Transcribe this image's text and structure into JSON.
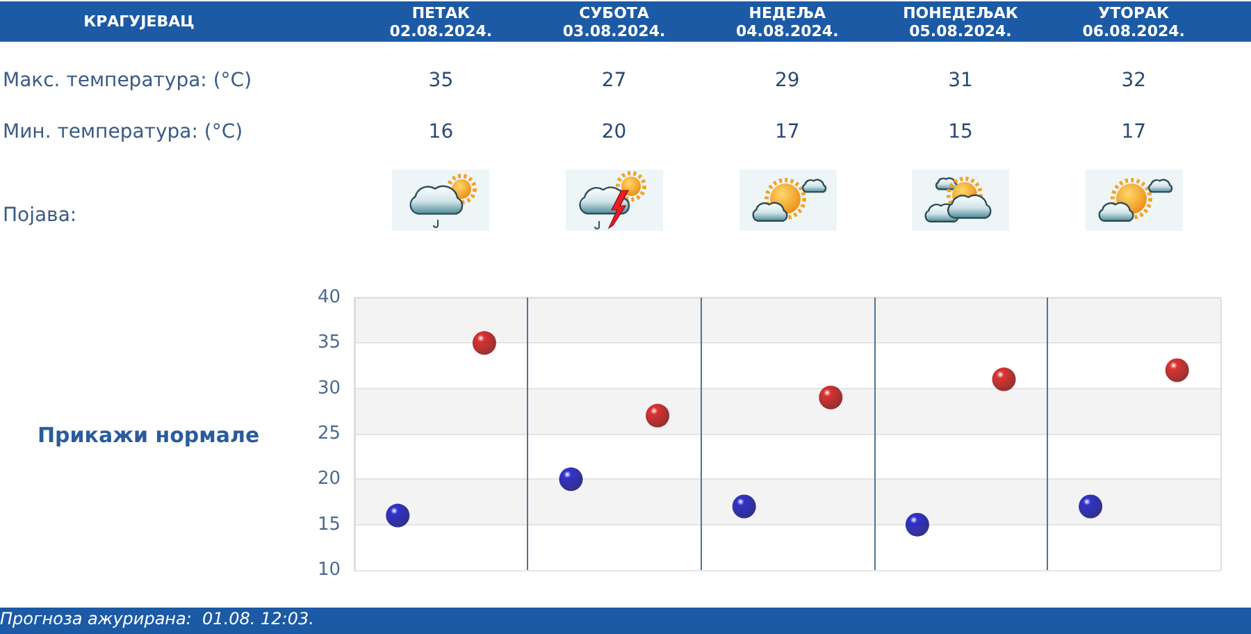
{
  "chart_data": [
    {
      "type": "other",
      "title": "КРАГУЈЕВАЦ",
      "categories": [
        "ПЕТАК\n02.08.2024.",
        "СУБОТА\n03.08.2024.",
        "НЕДЕЉА\n04.08.2024.",
        "ПОНЕДЕЉАК\n05.08.2024.",
        "УТОРАК\n06.08.2024."
      ],
      "series": [
        {
          "name": "Макс. температура: (°C)",
          "values": [
            35,
            27,
            29,
            31,
            32
          ]
        },
        {
          "name": "Мин. температура: (°C)",
          "values": [
            16,
            20,
            17,
            15,
            17
          ]
        }
      ],
      "data_labels": true,
      "annotations": [
        "Појава:"
      ]
    },
    {
      "type": "scatter",
      "categories": [
        null,
        null,
        null,
        null,
        null
      ],
      "series": [
        {
          "color": "#d40000",
          "values": [
            35,
            27,
            29,
            31,
            32
          ]
        },
        {
          "color": "#0000c0",
          "values": [
            16,
            20,
            17,
            15,
            17
          ]
        }
      ],
      "ylim": [
        10,
        40
      ],
      "yticks": [
        10,
        15,
        20,
        25,
        30,
        35,
        40
      ],
      "grid": true,
      "marker": "circle",
      "annotations": [
        "Прикажи нормале",
        "Прогноза ажурирана:  01.08. 12:03."
      ]
    }
  ]
}
